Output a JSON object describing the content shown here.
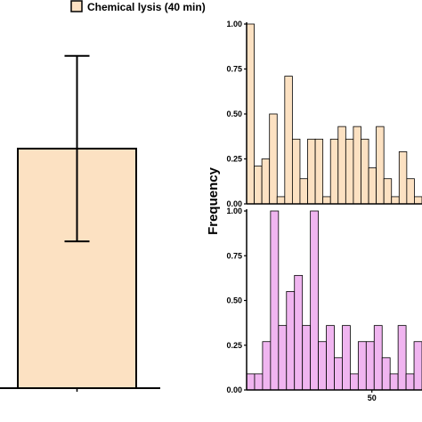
{
  "chart_data": [
    {
      "type": "bar",
      "legend": {
        "label": "Chemical lysis (40 min)",
        "placement": "top-left",
        "color": "#FCE1C2"
      },
      "bars": [
        {
          "value": 0.62,
          "error_low": 0.38,
          "error_high": 0.86,
          "color": "#FCE1C2"
        }
      ],
      "ylim": [
        0,
        1.0
      ]
    },
    {
      "type": "bar",
      "ylabel": "Frequency",
      "panels": [
        {
          "color": "#FCE1C2",
          "ylim": [
            0,
            1.0
          ],
          "yticks": [
            "0.00",
            "0.25",
            "0.50",
            "0.75",
            "1.00"
          ],
          "values": [
            1.0,
            0.21,
            0.25,
            0.5,
            0.04,
            0.71,
            0.36,
            0.14,
            0.36,
            0.36,
            0.04,
            0.36,
            0.43,
            0.36,
            0.43,
            0.36,
            0.2,
            0.43,
            0.14,
            0.04,
            0.29,
            0.14,
            0.04
          ]
        },
        {
          "color": "#F0B5F0",
          "ylim": [
            0,
            1.0
          ],
          "yticks": [
            "0.00",
            "0.25",
            "0.50",
            "0.75",
            "1.00"
          ],
          "xticks": [
            {
              "value": 50,
              "label": "50"
            }
          ],
          "values": [
            0.09,
            0.09,
            0.27,
            1.0,
            0.36,
            0.55,
            0.64,
            0.36,
            1.0,
            0.27,
            0.36,
            0.18,
            0.36,
            0.09,
            0.27,
            0.27,
            0.36,
            0.18,
            0.09,
            0.36,
            0.09,
            0.27
          ]
        }
      ]
    }
  ]
}
